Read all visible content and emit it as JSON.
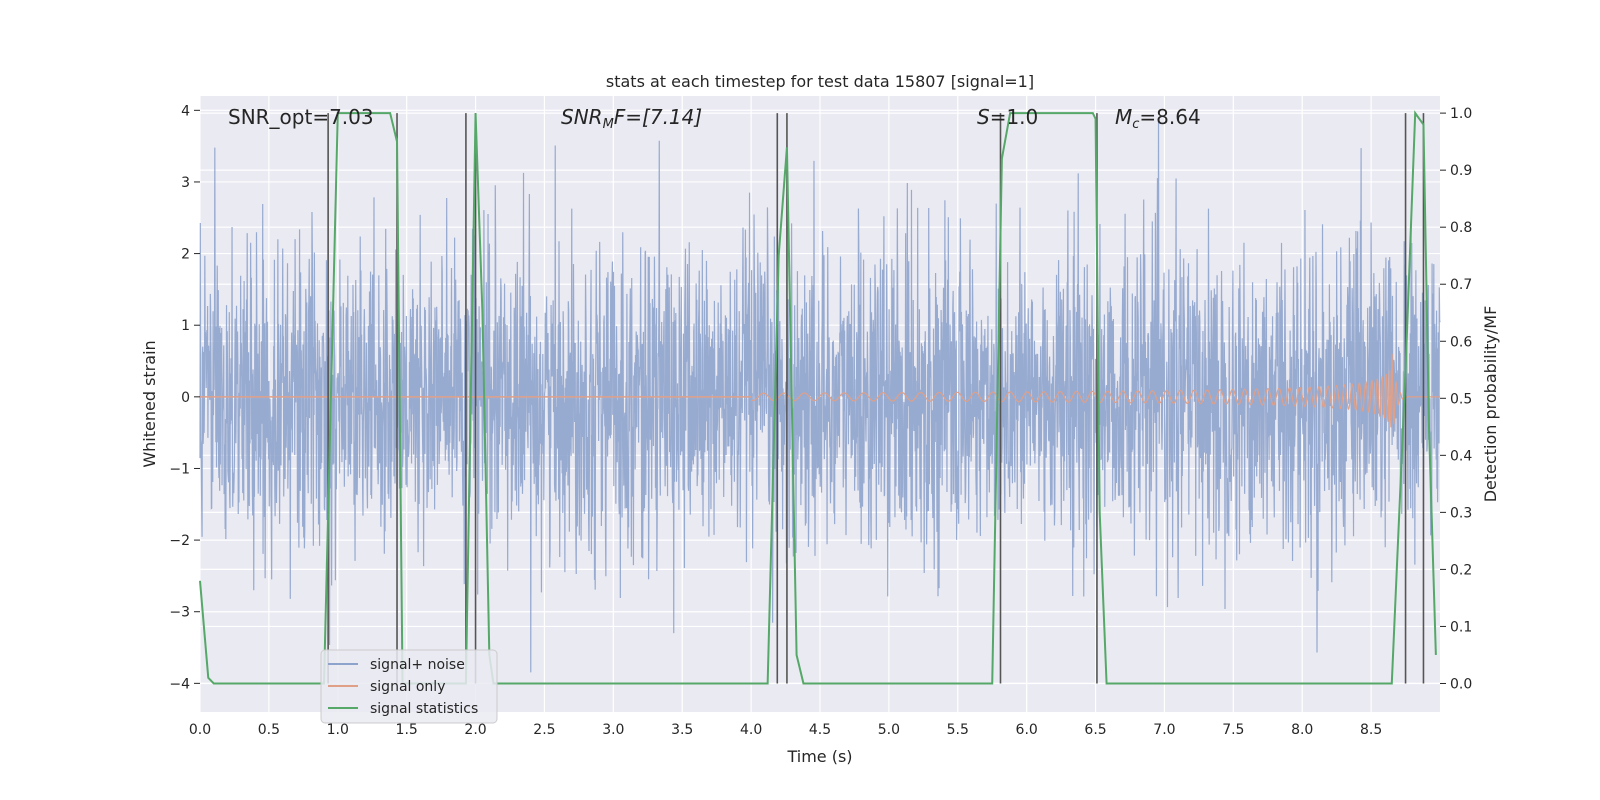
{
  "chart_data": {
    "type": "line",
    "title": "stats at each timestep for test data 15807 [signal=1]",
    "xlabel": "Time (s)",
    "ylabel_left": "Whitened strain",
    "ylabel_right": "Detection probability/MF",
    "xlim": [
      0,
      9
    ],
    "ylim_left": [
      -4.4,
      4.2
    ],
    "ylim_right": [
      -0.05,
      1.03
    ],
    "xticks": [
      "0.0",
      "0.5",
      "1.0",
      "1.5",
      "2.0",
      "2.5",
      "3.0",
      "3.5",
      "4.0",
      "4.5",
      "5.0",
      "5.5",
      "6.0",
      "6.5",
      "7.0",
      "7.5",
      "8.0",
      "8.5"
    ],
    "yticks_left": [
      "−4",
      "−3",
      "−2",
      "−1",
      "0",
      "1",
      "2",
      "3",
      "4"
    ],
    "yticks_right": [
      "0.0",
      "0.1",
      "0.2",
      "0.3",
      "0.4",
      "0.5",
      "0.6",
      "0.7",
      "0.8",
      "0.9",
      "1.0"
    ],
    "grid": true,
    "legend_position": "lower-left",
    "annotations": {
      "snr_opt": "SNR_opt=7.03",
      "snr_mf_base": "SNR",
      "snr_mf_sub": "M",
      "snr_mf_rest": "F=[7.14]",
      "s_base": "S",
      "s_rest": "=1.0",
      "mc_base": "M",
      "mc_sub": "c",
      "mc_rest": "=8.64"
    },
    "colors": {
      "noise": "#8ea3cc",
      "signal": "#e0a088",
      "stats": "#55a868",
      "vlines": "#555555",
      "background": "#eaeaf2"
    },
    "series": [
      {
        "name": "signal+ noise",
        "kind": "noise",
        "description_values": "gaussian whitened strain, std ~1.1, spikes up to ~3.8"
      },
      {
        "name": "signal only",
        "kind": "chirp",
        "merger_time": 8.65,
        "peak_amplitude": [
          0.85,
          -1.2
        ]
      },
      {
        "name": "signal statistics",
        "kind": "probability",
        "x": [
          0.0,
          0.06,
          0.1,
          0.9,
          0.95,
          1.0,
          1.05,
          1.38,
          1.43,
          1.47,
          1.93,
          2.0,
          2.05,
          2.1,
          2.13,
          2.18,
          4.12,
          4.2,
          4.26,
          4.33,
          4.38,
          5.75,
          5.82,
          5.88,
          6.48,
          6.5,
          6.53,
          6.58,
          6.62,
          8.65,
          8.75,
          8.82,
          8.88,
          8.92,
          8.97
        ],
        "y": [
          0.18,
          0.01,
          0.0,
          0.0,
          0.5,
          1.0,
          1.0,
          1.0,
          0.95,
          0.0,
          0.0,
          1.0,
          0.65,
          0.05,
          0.0,
          0.0,
          0.0,
          0.75,
          0.94,
          0.05,
          0.0,
          0.0,
          0.92,
          1.0,
          1.0,
          0.99,
          0.3,
          0.0,
          0.0,
          0.0,
          0.55,
          1.0,
          0.98,
          0.45,
          0.05
        ]
      }
    ],
    "vlines": [
      0.93,
      1.43,
      1.93,
      2.0,
      4.19,
      4.26,
      5.81,
      6.51,
      8.75,
      8.88
    ]
  }
}
